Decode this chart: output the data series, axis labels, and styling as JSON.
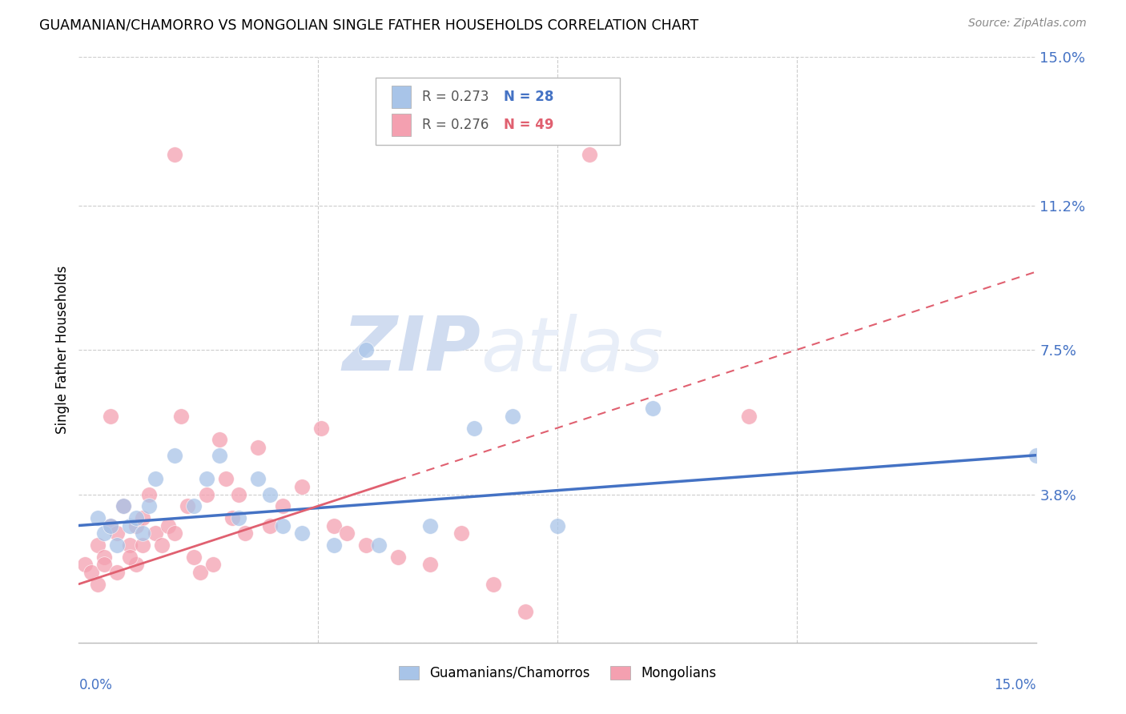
{
  "title": "GUAMANIAN/CHAMORRO VS MONGOLIAN SINGLE FATHER HOUSEHOLDS CORRELATION CHART",
  "source": "Source: ZipAtlas.com",
  "ylabel": "Single Father Households",
  "xlim": [
    0.0,
    15.0
  ],
  "ylim": [
    0.0,
    15.0
  ],
  "ytick_vals": [
    0.0,
    3.8,
    7.5,
    11.2,
    15.0
  ],
  "ytick_labels": [
    "",
    "3.8%",
    "7.5%",
    "11.2%",
    "15.0%"
  ],
  "legend_r_blue": "R = 0.273",
  "legend_n_blue": "N = 28",
  "legend_r_pink": "R = 0.276",
  "legend_n_pink": "N = 49",
  "legend_label_blue": "Guamanians/Chamorros",
  "legend_label_pink": "Mongolians",
  "blue_color": "#A8C4E8",
  "pink_color": "#F4A0B0",
  "blue_line_color": "#4472C4",
  "pink_line_color": "#E06070",
  "watermark_color": "#D0DCF0",
  "guam_x": [
    0.3,
    0.4,
    0.5,
    0.6,
    0.7,
    0.8,
    0.9,
    1.0,
    1.1,
    1.2,
    1.5,
    1.8,
    2.0,
    2.2,
    2.5,
    2.8,
    3.0,
    3.2,
    3.5,
    4.0,
    4.5,
    5.5,
    6.2,
    7.5,
    9.0,
    15.0,
    4.7,
    6.8
  ],
  "guam_y": [
    3.2,
    2.8,
    3.0,
    2.5,
    3.5,
    3.0,
    3.2,
    2.8,
    3.5,
    4.2,
    4.8,
    3.5,
    4.2,
    4.8,
    3.2,
    4.2,
    3.8,
    3.0,
    2.8,
    2.5,
    7.5,
    3.0,
    5.5,
    3.0,
    6.0,
    4.8,
    2.5,
    5.8
  ],
  "mong_x": [
    0.1,
    0.2,
    0.3,
    0.4,
    0.5,
    0.5,
    0.6,
    0.7,
    0.8,
    0.9,
    0.9,
    1.0,
    1.0,
    1.1,
    1.2,
    1.3,
    1.4,
    1.5,
    1.5,
    1.6,
    1.7,
    1.8,
    1.9,
    2.0,
    2.1,
    2.2,
    2.3,
    2.4,
    2.5,
    2.6,
    2.8,
    3.0,
    3.2,
    3.5,
    3.8,
    4.0,
    4.2,
    4.5,
    5.0,
    5.5,
    6.0,
    6.5,
    7.0,
    8.0,
    10.5,
    0.3,
    0.4,
    0.6,
    0.8
  ],
  "mong_y": [
    2.0,
    1.8,
    2.5,
    2.2,
    5.8,
    3.0,
    2.8,
    3.5,
    2.5,
    3.0,
    2.0,
    3.2,
    2.5,
    3.8,
    2.8,
    2.5,
    3.0,
    12.5,
    2.8,
    5.8,
    3.5,
    2.2,
    1.8,
    3.8,
    2.0,
    5.2,
    4.2,
    3.2,
    3.8,
    2.8,
    5.0,
    3.0,
    3.5,
    4.0,
    5.5,
    3.0,
    2.8,
    2.5,
    2.2,
    2.0,
    2.8,
    1.5,
    0.8,
    12.5,
    5.8,
    1.5,
    2.0,
    1.8,
    2.2
  ],
  "blue_line_x0": 0.0,
  "blue_line_y0": 3.0,
  "blue_line_x1": 15.0,
  "blue_line_y1": 4.8,
  "pink_line_x0": 0.0,
  "pink_line_y0": 1.5,
  "pink_line_x1": 15.0,
  "pink_line_y1": 9.5,
  "pink_solid_xmax": 5.0,
  "pink_dash_xmin": 5.0
}
